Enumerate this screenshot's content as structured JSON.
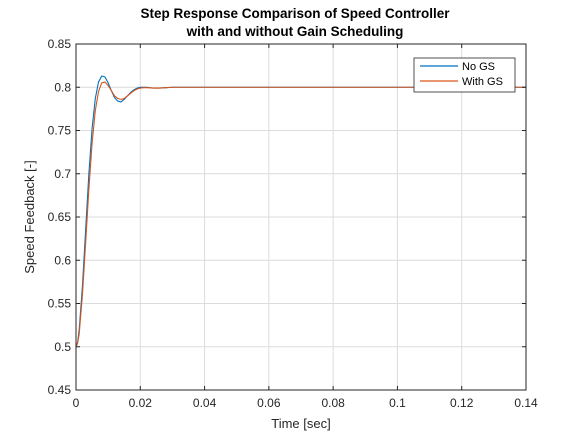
{
  "chart_data": {
    "type": "line",
    "title_line1": "Step Response Comparison of Speed Controller",
    "title_line2": "with and without Gain Scheduling",
    "xlabel": "Time [sec]",
    "ylabel": "Speed Feedback [-]",
    "xlim": [
      0,
      0.14
    ],
    "ylim": [
      0.45,
      0.85
    ],
    "xticks": [
      0,
      0.02,
      0.04,
      0.06,
      0.08,
      0.1,
      0.12,
      0.14
    ],
    "xtick_labels": [
      "0",
      "0.02",
      "0.04",
      "0.06",
      "0.08",
      "0.1",
      "0.12",
      "0.14"
    ],
    "yticks": [
      0.45,
      0.5,
      0.55,
      0.6,
      0.65,
      0.7,
      0.75,
      0.8,
      0.85
    ],
    "ytick_labels": [
      "0.45",
      "0.5",
      "0.55",
      "0.6",
      "0.65",
      "0.7",
      "0.75",
      "0.8",
      "0.85"
    ],
    "grid": true,
    "legend_position": "top-right",
    "series": [
      {
        "name": "No GS",
        "color": "#0072bd",
        "x": [
          0,
          0.0005,
          0.001,
          0.002,
          0.003,
          0.004,
          0.005,
          0.006,
          0.007,
          0.008,
          0.009,
          0.01,
          0.011,
          0.012,
          0.013,
          0.014,
          0.015,
          0.016,
          0.017,
          0.018,
          0.019,
          0.02,
          0.022,
          0.024,
          0.026,
          0.028,
          0.03,
          0.035,
          0.04,
          0.14
        ],
        "y": [
          0.5,
          0.505,
          0.52,
          0.57,
          0.635,
          0.7,
          0.752,
          0.787,
          0.806,
          0.813,
          0.812,
          0.805,
          0.796,
          0.788,
          0.784,
          0.783,
          0.786,
          0.79,
          0.794,
          0.797,
          0.799,
          0.8,
          0.8,
          0.799,
          0.799,
          0.7995,
          0.8,
          0.8,
          0.8,
          0.8
        ]
      },
      {
        "name": "With GS",
        "color": "#d95319",
        "x": [
          0,
          0.0005,
          0.001,
          0.002,
          0.003,
          0.004,
          0.005,
          0.006,
          0.007,
          0.008,
          0.009,
          0.01,
          0.011,
          0.012,
          0.013,
          0.014,
          0.015,
          0.016,
          0.017,
          0.018,
          0.019,
          0.02,
          0.021,
          0.022,
          0.024,
          0.026,
          0.028,
          0.03,
          0.035,
          0.04,
          0.14
        ],
        "y": [
          0.5,
          0.504,
          0.515,
          0.56,
          0.62,
          0.682,
          0.735,
          0.773,
          0.795,
          0.805,
          0.806,
          0.802,
          0.796,
          0.79,
          0.787,
          0.786,
          0.787,
          0.79,
          0.793,
          0.796,
          0.798,
          0.799,
          0.7995,
          0.7995,
          0.799,
          0.799,
          0.7995,
          0.8,
          0.8,
          0.8,
          0.8
        ]
      }
    ]
  }
}
